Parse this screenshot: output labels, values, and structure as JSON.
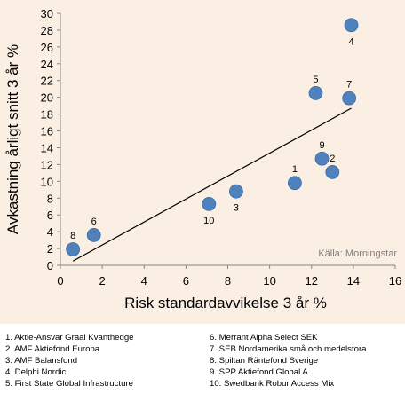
{
  "chart_data": {
    "type": "scatter",
    "title": "",
    "xlabel": "Risk standardavvikelse 3 år %",
    "ylabel": "Avkastning årligt snitt 3 år %",
    "xlim": [
      0,
      16
    ],
    "ylim": [
      0,
      30
    ],
    "xticks": [
      0,
      2,
      4,
      6,
      8,
      10,
      12,
      14,
      16
    ],
    "yticks": [
      0,
      2,
      4,
      6,
      8,
      10,
      12,
      14,
      16,
      18,
      20,
      22,
      24,
      26,
      28,
      30
    ],
    "grid": false,
    "marker_color": "#4f81bd",
    "background_color": "#fbefe4",
    "points": [
      {
        "label": "1",
        "x": 11.2,
        "y": 9.8,
        "label_pos": "above"
      },
      {
        "label": "2",
        "x": 13.0,
        "y": 11.1,
        "label_pos": "above"
      },
      {
        "label": "3",
        "x": 8.4,
        "y": 8.8,
        "label_pos": "below"
      },
      {
        "label": "4",
        "x": 13.9,
        "y": 28.6,
        "label_pos": "below"
      },
      {
        "label": "5",
        "x": 12.2,
        "y": 20.5,
        "label_pos": "above"
      },
      {
        "label": "6",
        "x": 1.6,
        "y": 3.6,
        "label_pos": "above"
      },
      {
        "label": "7",
        "x": 13.8,
        "y": 19.9,
        "label_pos": "above"
      },
      {
        "label": "8",
        "x": 0.6,
        "y": 1.9,
        "label_pos": "above"
      },
      {
        "label": "9",
        "x": 12.5,
        "y": 12.7,
        "label_pos": "above"
      },
      {
        "label": "10",
        "x": 7.1,
        "y": 7.3,
        "label_pos": "below"
      }
    ],
    "trendline": {
      "x": [
        0.6,
        13.9
      ],
      "y": [
        0.5,
        18.7
      ]
    },
    "annotation": "Källa: Morningstar",
    "legend": [
      "1. Aktie-Ansvar Graal Kvanthedge",
      "2. AMF Aktiefond Europa",
      "3. AMF Balansfond",
      "4. Delphi Nordic",
      "5. First State Global Infrastructure",
      "6. Merrant Alpha Select SEK",
      "7. SEB Nordamerika små och medelstora",
      "8. Spiltan Räntefond Sverige",
      "9. SPP Aktiefond Global A",
      "10. Swedbank Robur Access Mix"
    ]
  }
}
